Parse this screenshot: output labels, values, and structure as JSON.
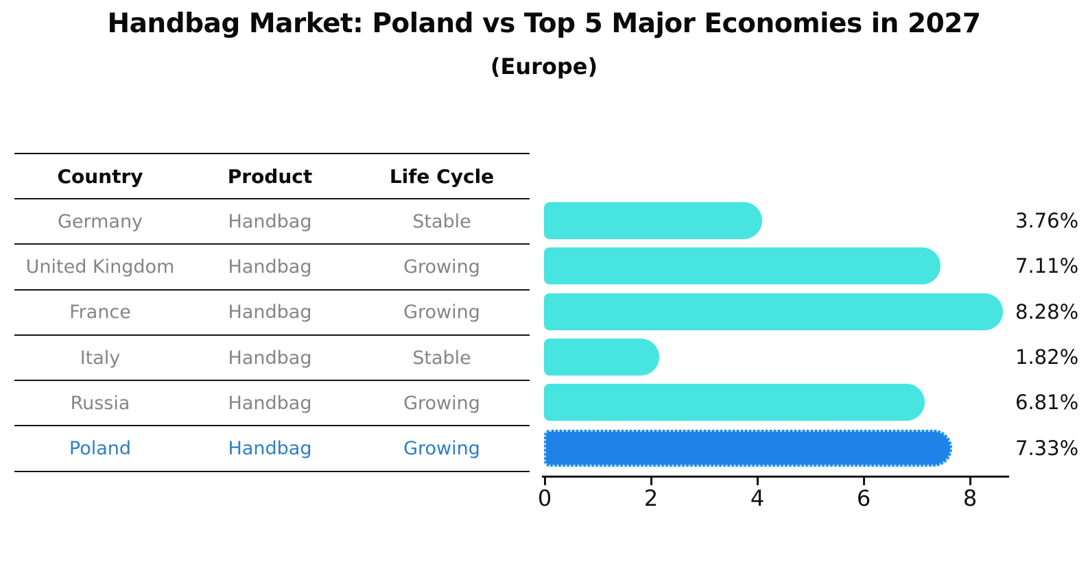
{
  "title": "Handbag Market: Poland vs Top 5 Major Economies in 2027",
  "subtitle": "(Europe)",
  "table": {
    "headers": [
      "Country",
      "Product",
      "Life Cycle"
    ],
    "rows": [
      {
        "country": "Germany",
        "product": "Handbag",
        "life_cycle": "Stable",
        "highlighted": false
      },
      {
        "country": "United Kingdom",
        "product": "Handbag",
        "life_cycle": "Growing",
        "highlighted": false
      },
      {
        "country": "France",
        "product": "Handbag",
        "life_cycle": "Growing",
        "highlighted": false
      },
      {
        "country": "Italy",
        "product": "Handbag",
        "life_cycle": "Stable",
        "highlighted": false
      },
      {
        "country": "Russia",
        "product": "Handbag",
        "life_cycle": "Growing",
        "highlighted": false
      },
      {
        "country": "Poland",
        "product": "Handbag",
        "life_cycle": "Growing",
        "highlighted": true
      }
    ]
  },
  "chart_data": {
    "type": "bar",
    "orientation": "horizontal",
    "title": "Handbag Market: Poland vs Top 5 Major Economies in 2027 (Europe)",
    "categories": [
      "Germany",
      "United Kingdom",
      "France",
      "Italy",
      "Russia",
      "Poland"
    ],
    "values": [
      3.76,
      7.11,
      8.28,
      1.82,
      6.81,
      7.33
    ],
    "value_labels": [
      "3.76%",
      "7.11%",
      "8.28%",
      "1.82%",
      "6.81%",
      "7.33%"
    ],
    "unit": "%",
    "x_ticks": [
      "0",
      "2",
      "4",
      "6",
      "8"
    ],
    "xlim": [
      0,
      8.74
    ],
    "grid": false,
    "legend": false,
    "highlight_category": "Poland",
    "colors": {
      "bar_default": "#48e5e0",
      "bar_highlight": "#1e82e8",
      "highlight_edge": "#aee0fa",
      "highlight_text": "#2b7fc9",
      "row_text": "#858585",
      "label_text": "#111111"
    }
  }
}
